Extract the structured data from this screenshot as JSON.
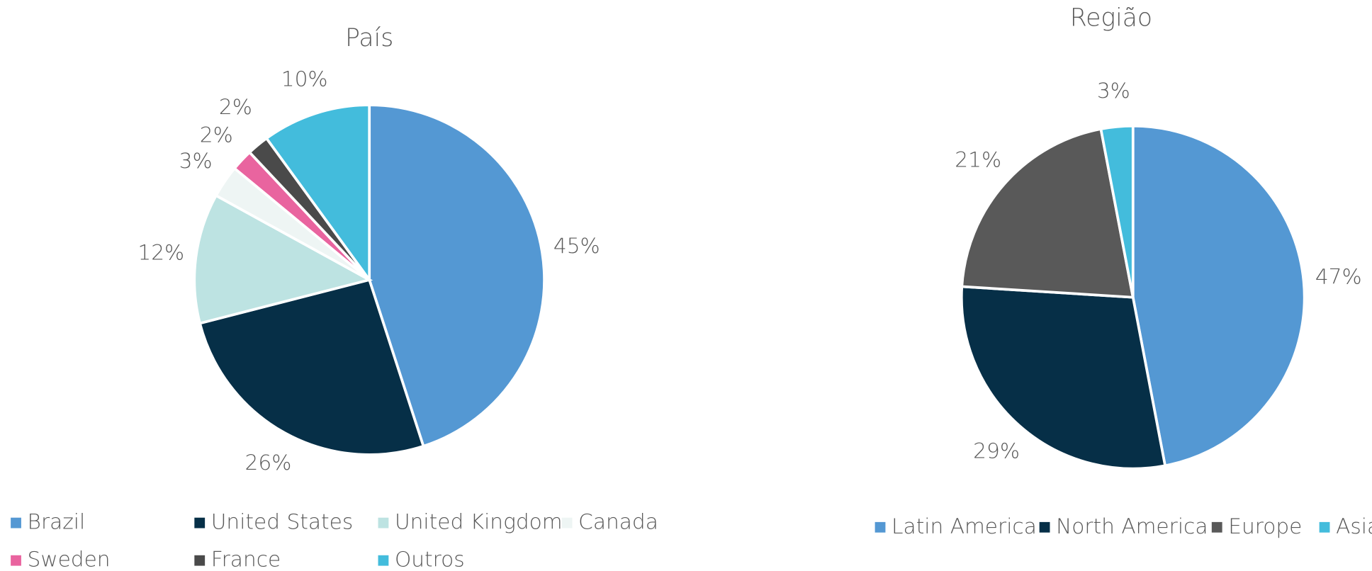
{
  "chart_data": [
    {
      "type": "pie",
      "title": "País",
      "categories": [
        "Brazil",
        "United States",
        "United Kingdom",
        "Canada",
        "Sweden",
        "France",
        "Outros"
      ],
      "values": [
        45,
        26,
        12,
        3,
        2,
        2,
        10
      ],
      "value_labels": [
        "45%",
        "26%",
        "12%",
        "3%",
        "2%",
        "2%",
        "10%"
      ],
      "colors": [
        "#5498d3",
        "#062f47",
        "#bde3e2",
        "#eef5f4",
        "#e9649f",
        "#4a4a4a",
        "#43bcdc"
      ],
      "legend": "bottom"
    },
    {
      "type": "pie",
      "title": "Região",
      "categories": [
        "Latin America",
        "North America",
        "Europe",
        "Asia"
      ],
      "values": [
        47,
        29,
        21,
        3
      ],
      "value_labels": [
        "47%",
        "29%",
        "21%",
        "3%"
      ],
      "colors": [
        "#5498d3",
        "#062f47",
        "#595959",
        "#43bcdc"
      ],
      "legend": "bottom"
    }
  ]
}
